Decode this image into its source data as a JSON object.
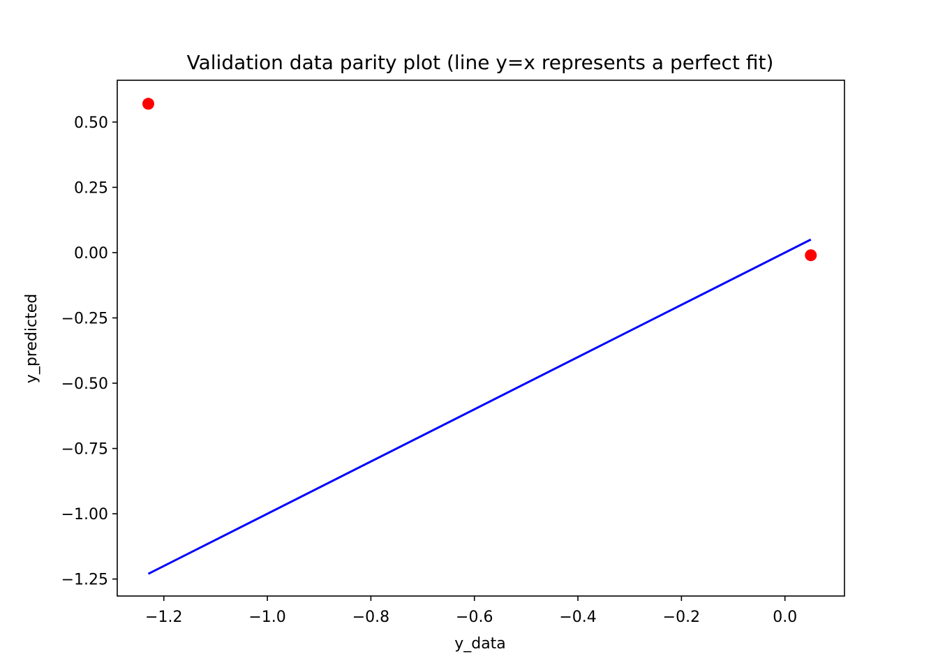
{
  "chart_data": {
    "type": "scatter",
    "title": "Validation data parity plot (line y=x represents a perfect fit)",
    "xlabel": "y_data",
    "ylabel": "y_predicted",
    "xlim": [
      -1.29,
      0.115
    ],
    "ylim": [
      -1.315,
      0.66
    ],
    "x_ticks": [
      -1.2,
      -1.0,
      -0.8,
      -0.6,
      -0.4,
      -0.2,
      0.0
    ],
    "x_tick_labels": [
      "−1.2",
      "−1.0",
      "−0.8",
      "−0.6",
      "−0.4",
      "−0.2",
      "0.0"
    ],
    "y_ticks": [
      0.5,
      0.25,
      0.0,
      -0.25,
      -0.5,
      -0.75,
      -1.0,
      -1.25
    ],
    "y_tick_labels": [
      "0.50",
      "0.25",
      "0.00",
      "−0.25",
      "−0.50",
      "−0.75",
      "−1.00",
      "−1.25"
    ],
    "grid": false,
    "legend": "none",
    "series": [
      {
        "type": "scatter",
        "color": "#ff0000",
        "points": [
          {
            "x": -1.23,
            "y": 0.57
          },
          {
            "x": 0.05,
            "y": -0.01
          }
        ]
      },
      {
        "type": "line",
        "color": "#0000ff",
        "points": [
          {
            "x": -1.23,
            "y": -1.23
          },
          {
            "x": 0.05,
            "y": 0.05
          }
        ]
      }
    ]
  }
}
